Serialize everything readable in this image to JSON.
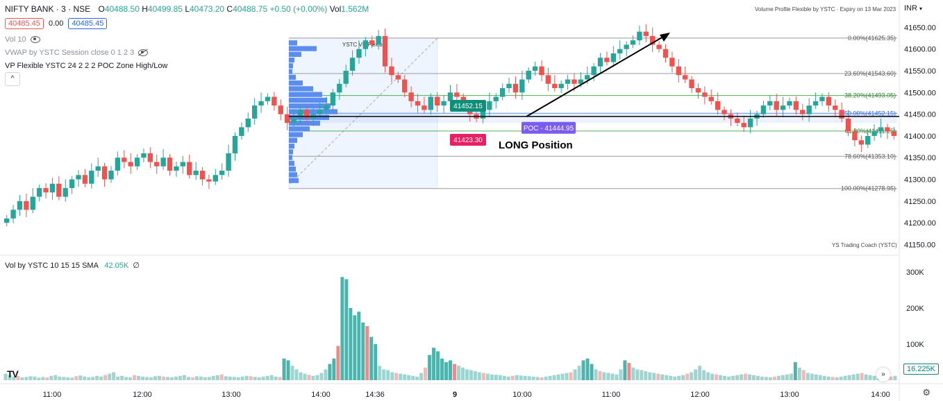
{
  "header": {
    "symbol": "NIFTY BANK · 3 · NSE",
    "ohlc": {
      "o_label": "O",
      "o": "40488.50",
      "h_label": "H",
      "h": "40499.85",
      "l_label": "L",
      "l": "40473.20",
      "c_label": "C",
      "c": "40488.75",
      "change": "+0.50 (+0.00%)",
      "vol_label": "Vol",
      "vol": "1.562M"
    },
    "bid": "40485.45",
    "spread": "0.00",
    "ask": "40485.45",
    "top_right_note": "Volume Profile Flexible by YSTC · Expiry on 13 Mar 2023",
    "currency": "INR"
  },
  "indicators": {
    "vol10": "Vol 10",
    "vwap": "VWAP by YSTC Session close 0 1 2 3",
    "vp": "VP Flexible YSTC 24 2 2 2 POC Zone High/Low",
    "collapse": "^"
  },
  "volume_pane": {
    "label": "Vol by YSTC 10 15 15 SMA",
    "value": "42.05K",
    "extra": "∅",
    "last_value": "16.225K",
    "axis": [
      "300K",
      "200K",
      "100K"
    ]
  },
  "footer_note": "YS Trading Coach (YSTC)",
  "colors": {
    "up": "#26a69a",
    "down": "#ef5350",
    "vp_bar": "#5b8def",
    "poc": "#7b5cf0",
    "fib_green": "#4caf50"
  },
  "chart_data": {
    "type": "candlestick",
    "price_axis": {
      "ticks": [
        "41650.00",
        "41600.00",
        "41550.00",
        "41500.00",
        "41450.00",
        "41400.00",
        "41350.00",
        "41300.00",
        "41250.00",
        "41200.00",
        "41150.00"
      ],
      "ylim": [
        41130,
        41665
      ]
    },
    "time_axis": [
      "11:00",
      "12:00",
      "13:00",
      "14:00",
      "14:36",
      "9",
      "10:00",
      "11:00",
      "12:00",
      "13:00",
      "14:00"
    ],
    "volume_profile_label": "YSTC VP Flexible",
    "fib_levels": [
      {
        "label": "0.00%(41625.35)",
        "price": 41625.35
      },
      {
        "label": "23.60%(41543.60)",
        "price": 41543.6
      },
      {
        "label": "38.20%(41493.05)",
        "price": 41493.05
      },
      {
        "label": "50.00%(41452.15)",
        "price": 41452.15
      },
      {
        "label": "61.80%(41411.25)",
        "price": 41411.25
      },
      {
        "label": "78.60%(41353.10)",
        "price": 41353.1
      },
      {
        "label": "100.00%(41278.95)",
        "price": 41278.95
      }
    ],
    "fib_label_shown": {
      "f0": "0.00%(41625.35)",
      "f236": "23.60%(41543.60)",
      "f382": "38.20%(41493.05)",
      "f50": "50.00%(41452.15)",
      "f618": "61.80%(41411.25)",
      "f786": "78.60%(41353.10)",
      "f100": "100.00%(41278.95)"
    },
    "poc": {
      "price": 41444.95,
      "label": "POC - 41444.95"
    },
    "callouts": [
      {
        "label": "41452.15",
        "price": 41452.15
      },
      {
        "label": "41423.30",
        "price": 41423.3
      }
    ],
    "annotation": "LONG Position",
    "closes": [
      41210,
      41230,
      41250,
      41230,
      41260,
      41280,
      41270,
      41290,
      41260,
      41280,
      41300,
      41310,
      41290,
      41320,
      41330,
      41300,
      41320,
      41350,
      41340,
      41330,
      41350,
      41360,
      41340,
      41330,
      41350,
      41320,
      41330,
      41340,
      41310,
      41320,
      41300,
      41295,
      41310,
      41320,
      41360,
      41400,
      41420,
      41440,
      41470,
      41480,
      41490,
      41470,
      41450,
      41430,
      41440,
      41460,
      41440,
      41450,
      41460,
      41470,
      41500,
      41520,
      41550,
      41580,
      41600,
      41620,
      41610,
      41630,
      41560,
      41540,
      41530,
      41500,
      41480,
      41470,
      41460,
      41490,
      41470,
      41480,
      41500,
      41490,
      41470,
      41450,
      41440,
      41460,
      41480,
      41490,
      41510,
      41520,
      41500,
      41530,
      41550,
      41560,
      41540,
      41520,
      41510,
      41520,
      41530,
      41520,
      41530,
      41540,
      41560,
      41580,
      41570,
      41590,
      41600,
      41610,
      41620,
      41640,
      41630,
      41610,
      41600,
      41580,
      41560,
      41540,
      41530,
      41510,
      41500,
      41490,
      41480,
      41460,
      41450,
      41440,
      41430,
      41420,
      41440,
      41450,
      41470,
      41480,
      41460,
      41470,
      41480,
      41460,
      41450,
      41470,
      41480,
      41490,
      41470,
      41460,
      41440,
      41410,
      41390,
      41380,
      41400,
      41410,
      41420,
      41410,
      41400
    ],
    "volumes": [
      18,
      14,
      10,
      12,
      8,
      9,
      11,
      10,
      7,
      9,
      8,
      12,
      14,
      10,
      9,
      8,
      7,
      11,
      13,
      10,
      8,
      9,
      12,
      10,
      14,
      18,
      22,
      10,
      12,
      9,
      8,
      14,
      12,
      10,
      9,
      8,
      11,
      12,
      10,
      9,
      8,
      10,
      12,
      14,
      9,
      8,
      11,
      10,
      8,
      9,
      12,
      14,
      16,
      11,
      10,
      9,
      8,
      10,
      12,
      11,
      9,
      8,
      10,
      12,
      14,
      10,
      9,
      60,
      55,
      40,
      30,
      22,
      18,
      15,
      12,
      14,
      20,
      30,
      45,
      60,
      95,
      286,
      280,
      200,
      180,
      190,
      160,
      150,
      120,
      100,
      40,
      30,
      28,
      22,
      20,
      18,
      16,
      14,
      12,
      10,
      20,
      35,
      70,
      90,
      80,
      60,
      50,
      55,
      45,
      40,
      35,
      30,
      28,
      25,
      22,
      20,
      18,
      16,
      15,
      14,
      12,
      10,
      12,
      14,
      13,
      12,
      11,
      10,
      9,
      8,
      10,
      12,
      14,
      16,
      18,
      20,
      22,
      30,
      40,
      55,
      60,
      45,
      30,
      25,
      22,
      20,
      18,
      16,
      30,
      55,
      48,
      35,
      30,
      28,
      25,
      22,
      20,
      18,
      16,
      14,
      12,
      10,
      12,
      14,
      18,
      22,
      30,
      40,
      28,
      22,
      18,
      16,
      14,
      12,
      10,
      12,
      14,
      16,
      18,
      16,
      14,
      12,
      10,
      9,
      8,
      10,
      12,
      14,
      16,
      18,
      50,
      35,
      28,
      20,
      18,
      16,
      14,
      12,
      10,
      9,
      8,
      10,
      12,
      14,
      16,
      18,
      20,
      16,
      14,
      12,
      10,
      9,
      8,
      10,
      12
    ]
  }
}
